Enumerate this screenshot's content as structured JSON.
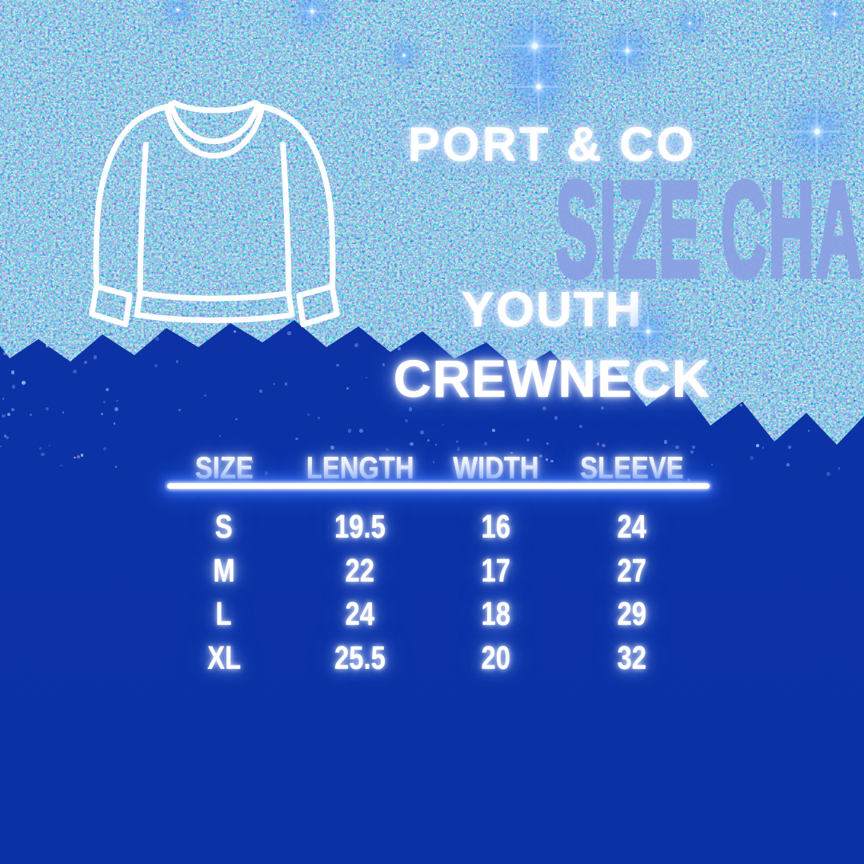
{
  "poster": {
    "background_color": "#0C33A6",
    "glitter_color": "#1A49D8",
    "title_color": "#8BA1E3",
    "text_color": "#FFFFFF"
  },
  "header": {
    "brand": "PORT & CO",
    "title": "SIZE CHART",
    "subtitle_line1": "YOUTH",
    "subtitle_line2": "CREWNECK"
  },
  "icon": {
    "name": "crewneck-sweatshirt-icon"
  },
  "table": {
    "headers": [
      "SIZE",
      "LENGTH",
      "WIDTH",
      "SLEEVE"
    ],
    "rows": [
      {
        "size": "S",
        "length": "19.5",
        "width": "16",
        "sleeve": "24"
      },
      {
        "size": "M",
        "length": "22",
        "width": "17",
        "sleeve": "27"
      },
      {
        "size": "L",
        "length": "24",
        "width": "18",
        "sleeve": "29"
      },
      {
        "size": "XL",
        "length": "25.5",
        "width": "20",
        "sleeve": "32"
      }
    ]
  },
  "chart_data": {
    "type": "table",
    "title": "PORT & CO SIZE CHART — YOUTH CREWNECK",
    "columns": [
      "SIZE",
      "LENGTH",
      "WIDTH",
      "SLEEVE"
    ],
    "rows": [
      [
        "S",
        19.5,
        16,
        24
      ],
      [
        "M",
        22,
        17,
        27
      ],
      [
        "L",
        24,
        18,
        29
      ],
      [
        "XL",
        25.5,
        20,
        32
      ]
    ]
  }
}
